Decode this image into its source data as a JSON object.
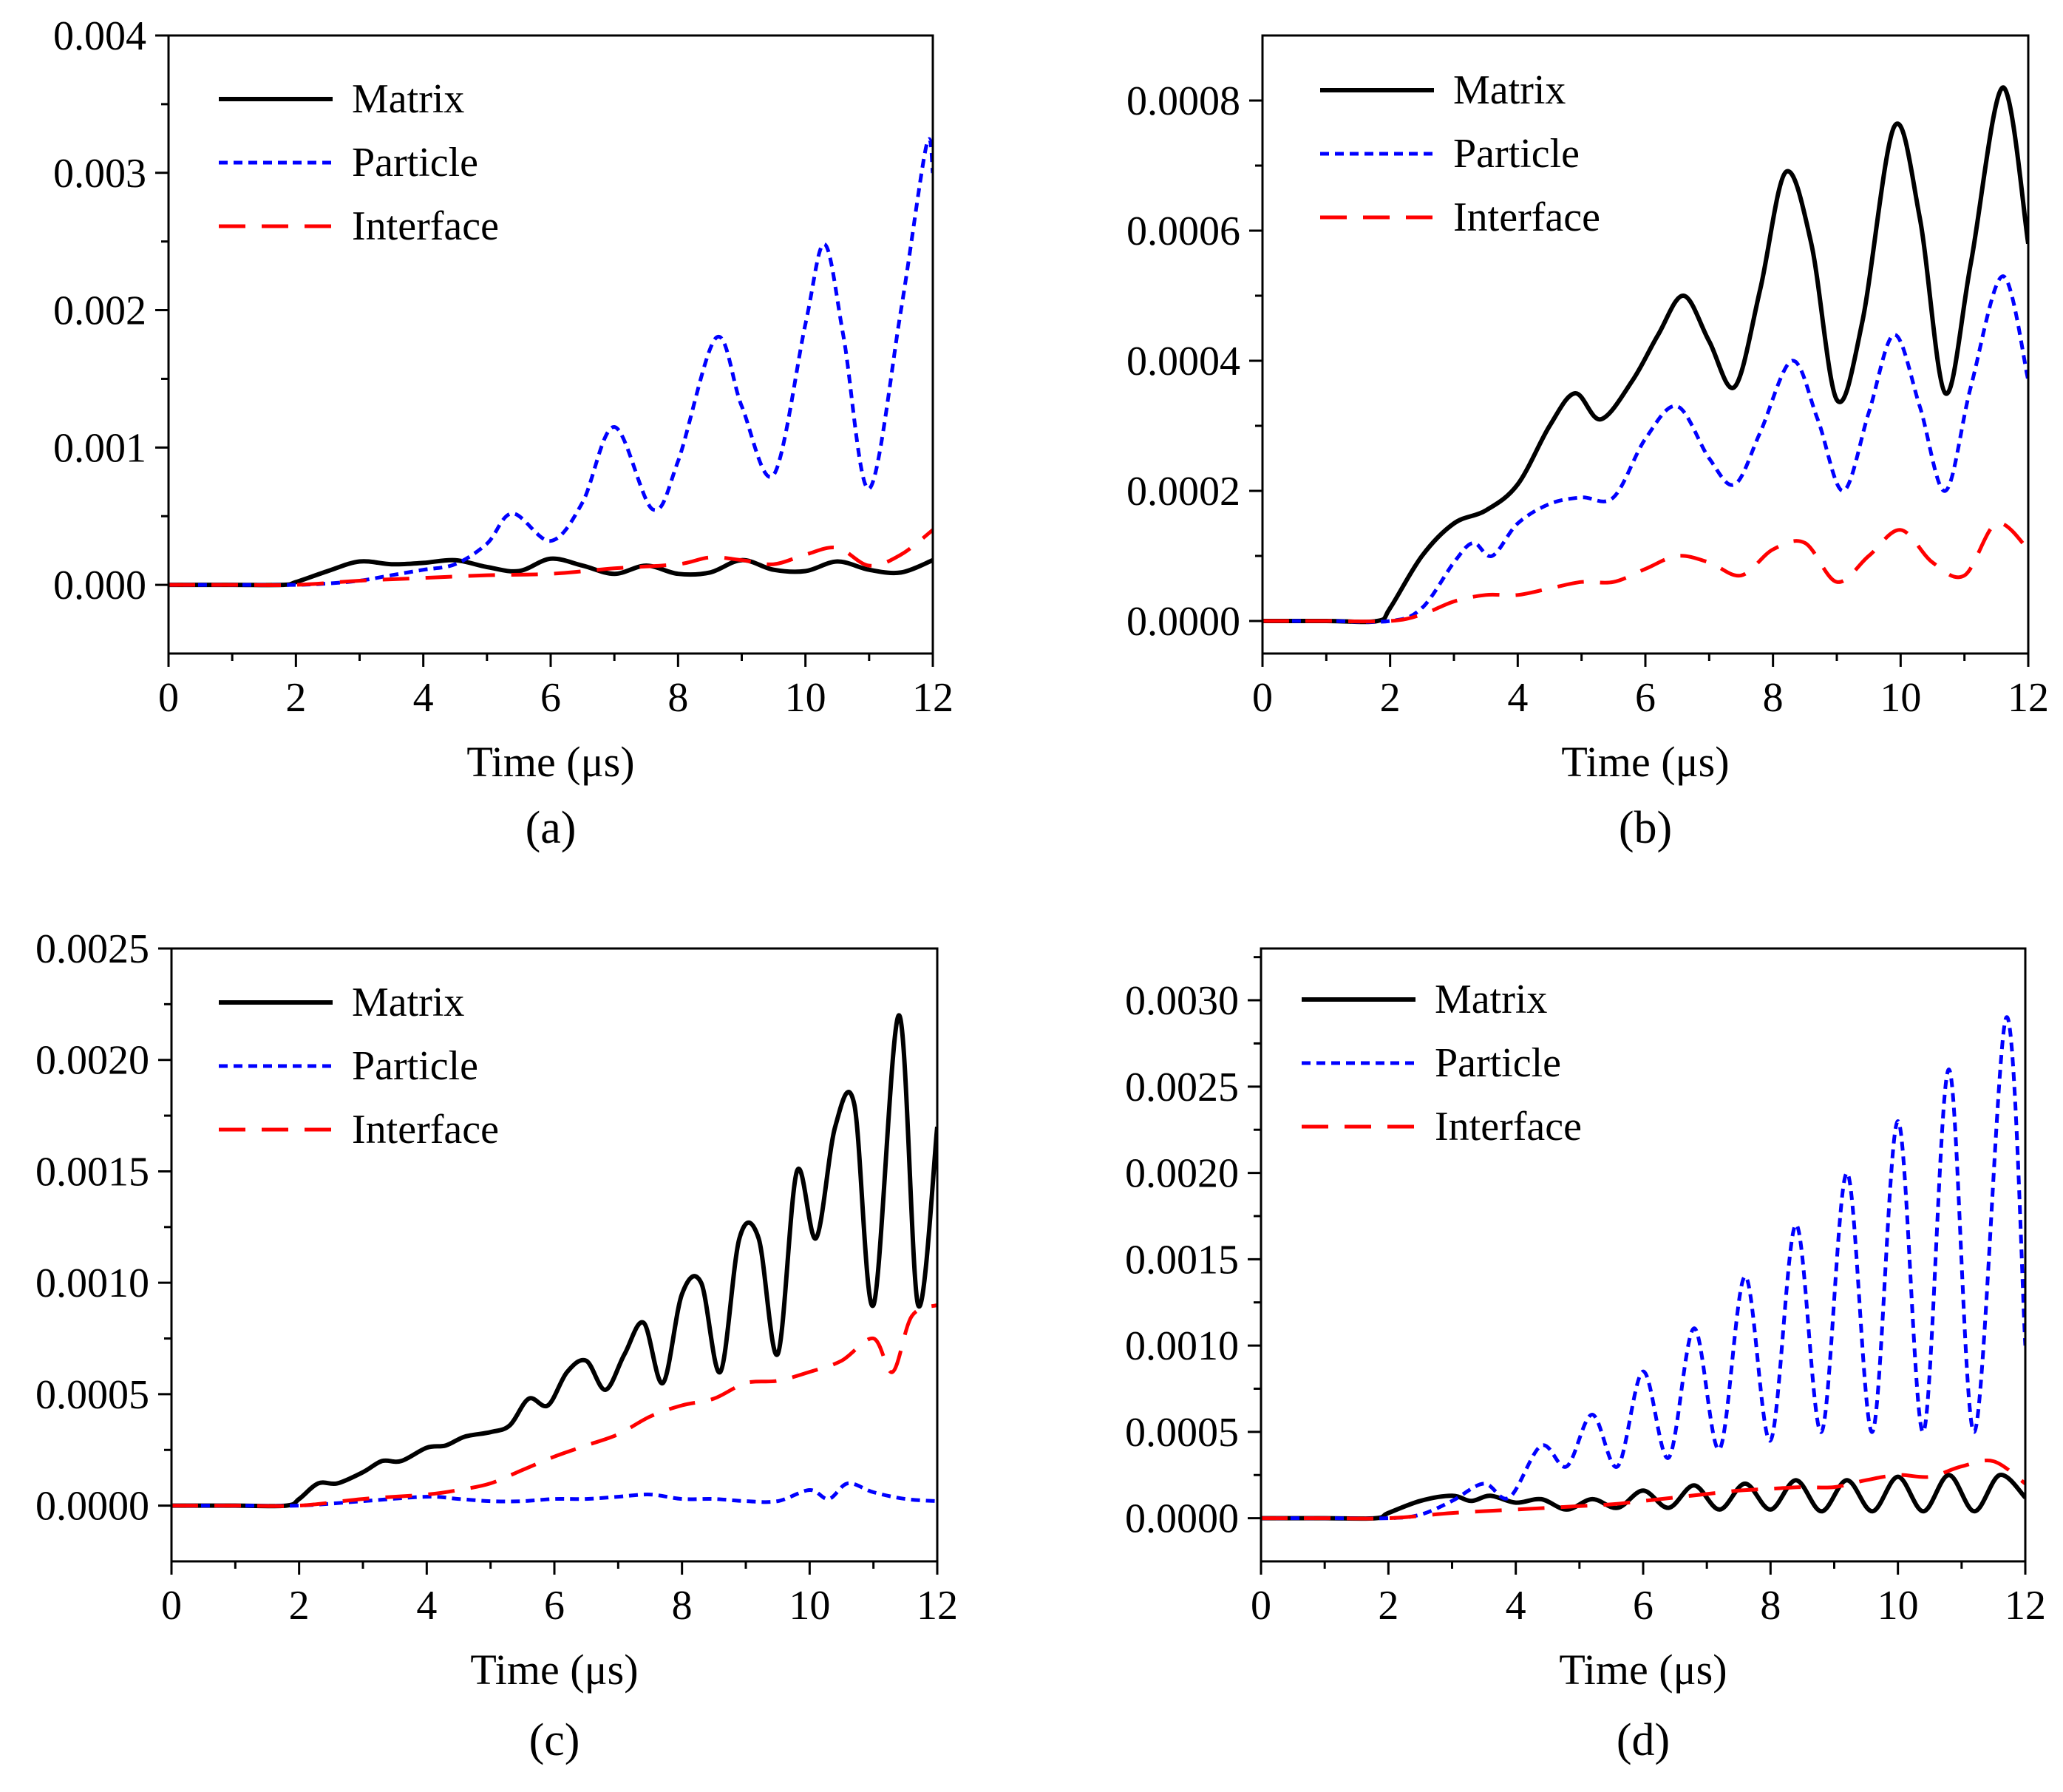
{
  "figure_type": "multi-panel line chart",
  "chart_data": [
    {
      "id": "a",
      "type": "line",
      "panel_label": "(a)",
      "xlabel": "Time (μs)",
      "ylabel": "",
      "xlim": [
        0,
        12
      ],
      "ylim": [
        -0.0005,
        0.004
      ],
      "xticks": [
        0,
        2,
        4,
        6,
        8,
        10,
        12
      ],
      "yticks": [
        0,
        0.001,
        0.002,
        0.003,
        0.004
      ],
      "ytick_labels": [
        "0.000",
        "0.001",
        "0.002",
        "0.003",
        "0.004"
      ],
      "grid": false,
      "legend_position": "top-left",
      "series": [
        {
          "name": "Matrix",
          "style": "solid",
          "color": "#000000",
          "x": [
            0,
            1,
            1.8,
            2,
            2.5,
            3,
            3.5,
            4,
            4.5,
            5,
            5.5,
            6,
            6.5,
            7,
            7.5,
            8,
            8.5,
            9,
            9.5,
            10,
            10.5,
            11,
            11.5,
            12
          ],
          "y": [
            0,
            0,
            0,
            2e-05,
            0.0001,
            0.00017,
            0.00015,
            0.00016,
            0.00018,
            0.00013,
            0.0001,
            0.00019,
            0.00014,
            8e-05,
            0.00014,
            8e-05,
            9e-05,
            0.00018,
            0.00011,
            0.0001,
            0.00017,
            0.00011,
            9e-05,
            0.00018
          ]
        },
        {
          "name": "Particle",
          "style": "dotted",
          "color": "#0000ff",
          "x": [
            0,
            1,
            2,
            2.5,
            3,
            3.5,
            4,
            4.5,
            5,
            5.4,
            6,
            6.5,
            7,
            7.6,
            8,
            8.6,
            9,
            9.5,
            10,
            10.3,
            10.6,
            11,
            11.5,
            11.9,
            12
          ],
          "y": [
            0,
            0,
            0,
            1e-05,
            3e-05,
            7e-05,
            0.00011,
            0.00015,
            0.0003,
            0.00052,
            0.00032,
            0.0006,
            0.00115,
            0.00055,
            0.0009,
            0.0018,
            0.0013,
            0.0008,
            0.0019,
            0.00248,
            0.0018,
            0.0007,
            0.002,
            0.0032,
            0.003
          ]
        },
        {
          "name": "Interface",
          "style": "dashed",
          "color": "#ff0000",
          "x": [
            0,
            1,
            2,
            3,
            4,
            5,
            6,
            7,
            8,
            8.5,
            9,
            9.5,
            10,
            10.5,
            11,
            11.5,
            12
          ],
          "y": [
            0,
            0,
            0,
            3e-05,
            5e-05,
            7e-05,
            8e-05,
            0.00012,
            0.00015,
            0.0002,
            0.00018,
            0.00015,
            0.00022,
            0.00027,
            0.00014,
            0.00022,
            0.0004
          ]
        }
      ]
    },
    {
      "id": "b",
      "type": "line",
      "panel_label": "(b)",
      "xlabel": "Time (μs)",
      "ylabel": "",
      "xlim": [
        0,
        12
      ],
      "ylim": [
        -5e-05,
        0.0009
      ],
      "xticks": [
        0,
        2,
        4,
        6,
        8,
        10,
        12
      ],
      "yticks": [
        0,
        0.0002,
        0.0004,
        0.0006,
        0.0008
      ],
      "ytick_labels": [
        "0.0000",
        "0.0002",
        "0.0004",
        "0.0006",
        "0.0008"
      ],
      "grid": false,
      "legend_position": "top-left",
      "series": [
        {
          "name": "Matrix",
          "style": "solid",
          "color": "#000000",
          "x": [
            0,
            1,
            1.8,
            2,
            2.5,
            3,
            3.5,
            4,
            4.5,
            4.9,
            5.3,
            5.8,
            6.2,
            6.6,
            7,
            7.4,
            7.8,
            8.2,
            8.6,
            9,
            9.4,
            9.9,
            10.3,
            10.7,
            11.1,
            11.6,
            12
          ],
          "y": [
            0,
            0,
            0,
            2e-05,
            0.0001,
            0.00015,
            0.00017,
            0.00021,
            0.0003,
            0.00035,
            0.00031,
            0.00037,
            0.00044,
            0.0005,
            0.00043,
            0.00036,
            0.00051,
            0.00069,
            0.00058,
            0.00034,
            0.00046,
            0.00076,
            0.00062,
            0.00035,
            0.00055,
            0.00082,
            0.00058
          ]
        },
        {
          "name": "Particle",
          "style": "dotted",
          "color": "#0000ff",
          "x": [
            0,
            1,
            2,
            2.5,
            3,
            3.3,
            3.6,
            4,
            4.5,
            5,
            5.5,
            6,
            6.5,
            7,
            7.4,
            7.8,
            8.3,
            8.7,
            9.1,
            9.5,
            9.9,
            10.3,
            10.7,
            11.1,
            11.6,
            12
          ],
          "y": [
            0,
            0,
            0,
            2e-05,
            9e-05,
            0.00012,
            0.0001,
            0.00015,
            0.00018,
            0.00019,
            0.00019,
            0.00028,
            0.00033,
            0.00025,
            0.00021,
            0.00029,
            0.0004,
            0.00031,
            0.0002,
            0.00032,
            0.00044,
            0.00033,
            0.0002,
            0.00036,
            0.00053,
            0.00037
          ]
        },
        {
          "name": "Interface",
          "style": "dashed",
          "color": "#ff0000",
          "x": [
            0,
            1,
            2,
            2.5,
            3,
            3.5,
            4,
            4.5,
            5,
            5.5,
            6,
            6.5,
            7,
            7.5,
            8,
            8.5,
            9,
            9.5,
            10,
            10.5,
            11,
            11.5,
            12
          ],
          "y": [
            0,
            0,
            0,
            1e-05,
            3e-05,
            4e-05,
            4e-05,
            5e-05,
            6e-05,
            6e-05,
            8e-05,
            0.0001,
            9e-05,
            7e-05,
            0.00011,
            0.00012,
            6e-05,
            0.0001,
            0.00014,
            9e-05,
            7e-05,
            0.00015,
            0.00011
          ]
        }
      ]
    },
    {
      "id": "c",
      "type": "line",
      "panel_label": "(c)",
      "xlabel": "Time (μs)",
      "ylabel": "",
      "xlim": [
        0,
        12
      ],
      "ylim": [
        -0.00025,
        0.0025
      ],
      "xticks": [
        0,
        2,
        4,
        6,
        8,
        10,
        12
      ],
      "yticks": [
        0,
        0.0005,
        0.001,
        0.0015,
        0.002,
        0.0025
      ],
      "ytick_labels": [
        "0.0000",
        "0.0005",
        "0.0010",
        "0.0015",
        "0.0020",
        "0.0025"
      ],
      "grid": false,
      "legend_position": "top-left",
      "series": [
        {
          "name": "Matrix",
          "style": "solid",
          "color": "#000000",
          "x": [
            0,
            1,
            1.8,
            2,
            2.3,
            2.6,
            3,
            3.3,
            3.6,
            4,
            4.3,
            4.6,
            5,
            5.3,
            5.6,
            5.9,
            6.2,
            6.5,
            6.8,
            7.1,
            7.4,
            7.7,
            8,
            8.3,
            8.6,
            8.9,
            9.2,
            9.5,
            9.8,
            10.1,
            10.4,
            10.7,
            11,
            11.4,
            11.7,
            12
          ],
          "y": [
            0,
            0,
            0,
            3e-05,
            0.0001,
            0.0001,
            0.00015,
            0.0002,
            0.0002,
            0.00026,
            0.00027,
            0.00031,
            0.00033,
            0.00036,
            0.00048,
            0.00045,
            0.0006,
            0.00065,
            0.00052,
            0.00068,
            0.00082,
            0.00055,
            0.00095,
            0.001,
            0.0006,
            0.0012,
            0.0012,
            0.00068,
            0.0015,
            0.0012,
            0.0017,
            0.0018,
            0.0009,
            0.0022,
            0.0009,
            0.0017
          ]
        },
        {
          "name": "Particle",
          "style": "dotted",
          "color": "#0000ff",
          "x": [
            0,
            1,
            2,
            3,
            4,
            4.5,
            5,
            5.5,
            6,
            6.5,
            7,
            7.5,
            8,
            8.5,
            9,
            9.5,
            10,
            10.3,
            10.6,
            11,
            11.5,
            12
          ],
          "y": [
            0,
            0,
            0,
            2e-05,
            4e-05,
            3e-05,
            2e-05,
            2e-05,
            3e-05,
            3e-05,
            4e-05,
            5e-05,
            3e-05,
            3e-05,
            2e-05,
            2e-05,
            7e-05,
            3e-05,
            0.0001,
            6e-05,
            3e-05,
            2e-05
          ]
        },
        {
          "name": "Interface",
          "style": "dashed",
          "color": "#ff0000",
          "x": [
            0,
            1,
            2,
            3,
            4,
            4.5,
            5,
            5.5,
            6,
            6.5,
            7,
            7.5,
            8,
            8.5,
            9,
            9.5,
            10,
            10.5,
            11,
            11.3,
            11.6,
            12
          ],
          "y": [
            0,
            0,
            0,
            3e-05,
            5e-05,
            7e-05,
            0.0001,
            0.00016,
            0.00022,
            0.00027,
            0.00032,
            0.0004,
            0.00045,
            0.00048,
            0.00055,
            0.00056,
            0.0006,
            0.00065,
            0.00075,
            0.0006,
            0.00085,
            0.0009
          ]
        }
      ]
    },
    {
      "id": "d",
      "type": "line",
      "panel_label": "(d)",
      "xlabel": "Time (μs)",
      "ylabel": "",
      "xlim": [
        0,
        12
      ],
      "ylim": [
        -0.00025,
        0.0033
      ],
      "xticks": [
        0,
        2,
        4,
        6,
        8,
        10,
        12
      ],
      "yticks": [
        0,
        0.0005,
        0.001,
        0.0015,
        0.002,
        0.0025,
        0.003
      ],
      "ytick_labels": [
        "0.0000",
        "0.0005",
        "0.0010",
        "0.0015",
        "0.0020",
        "0.0025",
        "0.0030"
      ],
      "grid": false,
      "legend_position": "top-left",
      "series": [
        {
          "name": "Matrix",
          "style": "solid",
          "color": "#000000",
          "x": [
            0,
            1,
            1.8,
            2,
            2.5,
            3,
            3.3,
            3.6,
            4,
            4.4,
            4.8,
            5.2,
            5.6,
            6,
            6.4,
            6.8,
            7.2,
            7.6,
            8,
            8.4,
            8.8,
            9.2,
            9.6,
            10,
            10.4,
            10.8,
            11.2,
            11.6,
            12
          ],
          "y": [
            0,
            0,
            0,
            3e-05,
            0.0001,
            0.00013,
            0.0001,
            0.00013,
            9e-05,
            0.00011,
            5e-05,
            0.00011,
            6e-05,
            0.00016,
            6e-05,
            0.00019,
            5e-05,
            0.0002,
            5e-05,
            0.00022,
            4e-05,
            0.00022,
            4e-05,
            0.00024,
            4e-05,
            0.00025,
            4e-05,
            0.00025,
            0.00012
          ]
        },
        {
          "name": "Particle",
          "style": "dotted",
          "color": "#0000ff",
          "x": [
            0,
            1,
            2,
            2.5,
            3,
            3.5,
            3.9,
            4.4,
            4.8,
            5.2,
            5.6,
            6,
            6.4,
            6.8,
            7.2,
            7.6,
            8,
            8.4,
            8.8,
            9.2,
            9.6,
            10,
            10.4,
            10.8,
            11.2,
            11.7,
            12
          ],
          "y": [
            0,
            0,
            0,
            2e-05,
            0.0001,
            0.0002,
            0.00012,
            0.00042,
            0.0003,
            0.0006,
            0.0003,
            0.00085,
            0.00035,
            0.0011,
            0.0004,
            0.0014,
            0.00045,
            0.0017,
            0.0005,
            0.002,
            0.0005,
            0.0023,
            0.0005,
            0.0026,
            0.0005,
            0.0029,
            0.001
          ]
        },
        {
          "name": "Interface",
          "style": "dashed",
          "color": "#ff0000",
          "x": [
            0,
            1,
            2,
            3,
            4,
            4.5,
            5,
            5.5,
            6,
            6.5,
            7,
            7.5,
            8,
            8.5,
            9,
            9.5,
            10,
            10.5,
            11,
            11.5,
            12
          ],
          "y": [
            0,
            0,
            0,
            3e-05,
            5e-05,
            6e-05,
            7e-05,
            8e-05,
            0.0001,
            0.00012,
            0.00014,
            0.00016,
            0.00017,
            0.00018,
            0.00018,
            0.00022,
            0.00025,
            0.00024,
            0.0003,
            0.00033,
            0.0002
          ]
        }
      ]
    }
  ]
}
